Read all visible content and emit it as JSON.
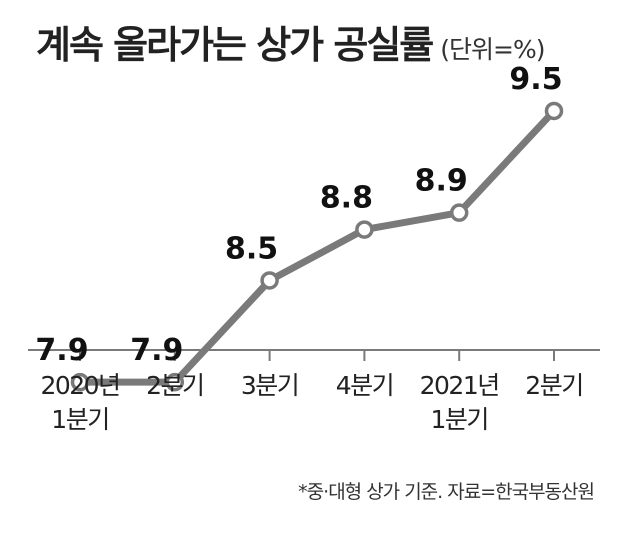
{
  "title": "계속 올라가는 상가 공실률",
  "unit": "(단위=%)",
  "footnote": "*중·대형 상가 기준. 자료=한국부동산원",
  "colors": {
    "line": "#7a7a7a",
    "marker_fill": "#ffffff",
    "axis": "#7a7a7a",
    "text": "#1a1a1a"
  },
  "chart_data": {
    "type": "line",
    "categories": [
      [
        "2020년",
        "1분기"
      ],
      [
        "2분기"
      ],
      [
        "3분기"
      ],
      [
        "4분기"
      ],
      [
        "2021년",
        "1분기"
      ],
      [
        "2분기"
      ]
    ],
    "values": [
      7.9,
      7.9,
      8.5,
      8.8,
      8.9,
      9.5
    ],
    "value_labels": [
      "7.9",
      "7.9",
      "8.5",
      "8.8",
      "8.9",
      "9.5"
    ],
    "ylim": [
      7.6,
      9.6
    ],
    "grid": false,
    "y_axis_visible": false
  }
}
